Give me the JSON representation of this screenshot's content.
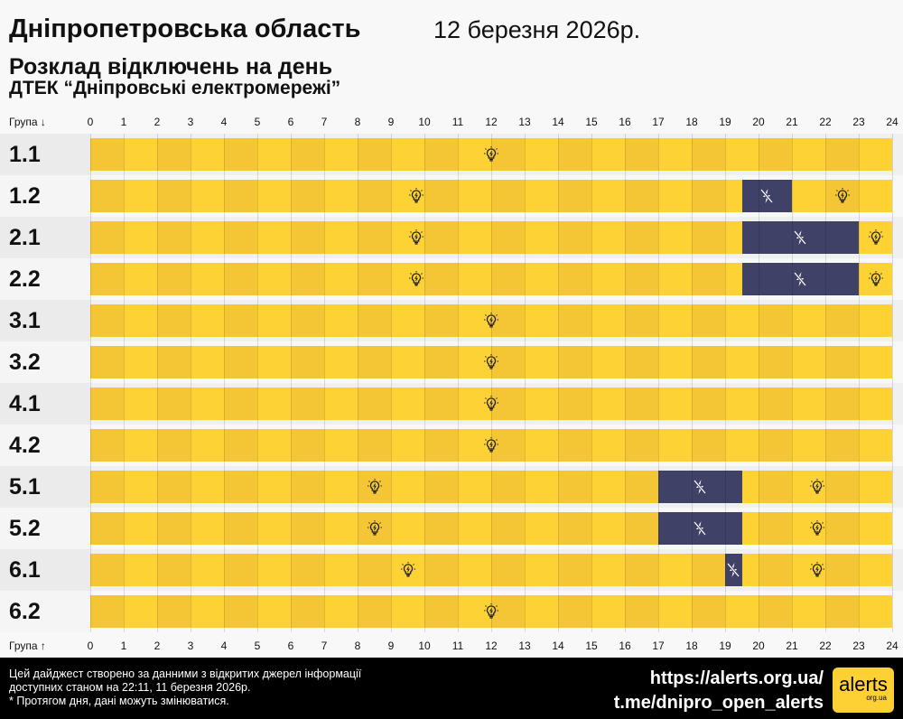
{
  "header": {
    "title": "Дніпропетровська область",
    "date": "12 березня 2026р.",
    "subtitle": "Розклад відключень на день",
    "provider": "ДТЕК “Дніпровські електромережі”"
  },
  "axis": {
    "top_label": "Група ↓",
    "bottom_label": "Група ↑",
    "hours": [
      "0",
      "1",
      "2",
      "3",
      "4",
      "5",
      "6",
      "7",
      "8",
      "9",
      "10",
      "11",
      "12",
      "13",
      "14",
      "15",
      "16",
      "17",
      "18",
      "19",
      "20",
      "21",
      "22",
      "23",
      "24"
    ]
  },
  "colors": {
    "on_even": "#f4c534",
    "on_odd": "#fdd235",
    "off": "#3f4166",
    "label_bg_odd": "#ebebeb",
    "label_bg_even": "#f5f5f5"
  },
  "icons": {
    "on": "lightbulb-icon",
    "off": "power-off-icon"
  },
  "groups": [
    {
      "name": "1.1",
      "outages": []
    },
    {
      "name": "1.2",
      "outages": [
        [
          19.5,
          21
        ]
      ]
    },
    {
      "name": "2.1",
      "outages": [
        [
          19.5,
          23
        ]
      ]
    },
    {
      "name": "2.2",
      "outages": [
        [
          19.5,
          23
        ]
      ]
    },
    {
      "name": "3.1",
      "outages": []
    },
    {
      "name": "3.2",
      "outages": []
    },
    {
      "name": "4.1",
      "outages": []
    },
    {
      "name": "4.2",
      "outages": []
    },
    {
      "name": "5.1",
      "outages": [
        [
          17,
          19.5
        ]
      ]
    },
    {
      "name": "5.2",
      "outages": [
        [
          17,
          19.5
        ]
      ]
    },
    {
      "name": "6.1",
      "outages": [
        [
          19,
          19.5
        ]
      ]
    },
    {
      "name": "6.2",
      "outages": []
    }
  ],
  "footer": {
    "line1": "Цей дайджест створено за данними з відкритих джерел інформації",
    "line2": "доступних станом на 22:11, 11 березня 2026р.",
    "line3": "* Протягом дня, дані можуть змінюватися.",
    "link1": "https://alerts.org.ua/",
    "link2": "t.me/dnipro_open_alerts",
    "logo_text": "alerts",
    "logo_sub": "org.ua"
  }
}
